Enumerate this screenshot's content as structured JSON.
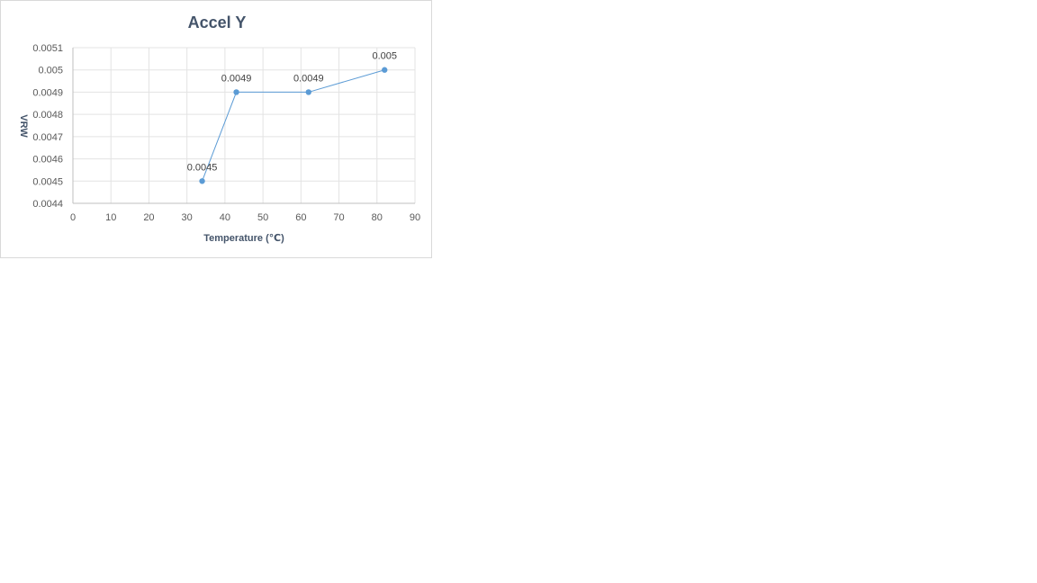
{
  "chart_data": {
    "type": "scatter",
    "title": "Accel Y",
    "xlabel": "Temperature (℃)",
    "ylabel": "VRW",
    "xlim": [
      0,
      90
    ],
    "ylim": [
      0.0044,
      0.0051
    ],
    "x_ticks": [
      "0",
      "10",
      "20",
      "30",
      "40",
      "50",
      "60",
      "70",
      "80",
      "90"
    ],
    "y_ticks": [
      "0.0044",
      "0.0045",
      "0.0046",
      "0.0047",
      "0.0048",
      "0.0049",
      "0.005",
      "0.0051"
    ],
    "grid": true,
    "legend": "none",
    "series": [
      {
        "color": "#5b9bd5",
        "line": true,
        "markers": true,
        "points": [
          {
            "x": 34,
            "y": 0.0045,
            "label": "0.0045"
          },
          {
            "x": 43,
            "y": 0.0049,
            "label": "0.0049"
          },
          {
            "x": 62,
            "y": 0.0049,
            "label": "0.0049"
          },
          {
            "x": 82,
            "y": 0.005,
            "label": "0.005"
          }
        ]
      }
    ]
  }
}
